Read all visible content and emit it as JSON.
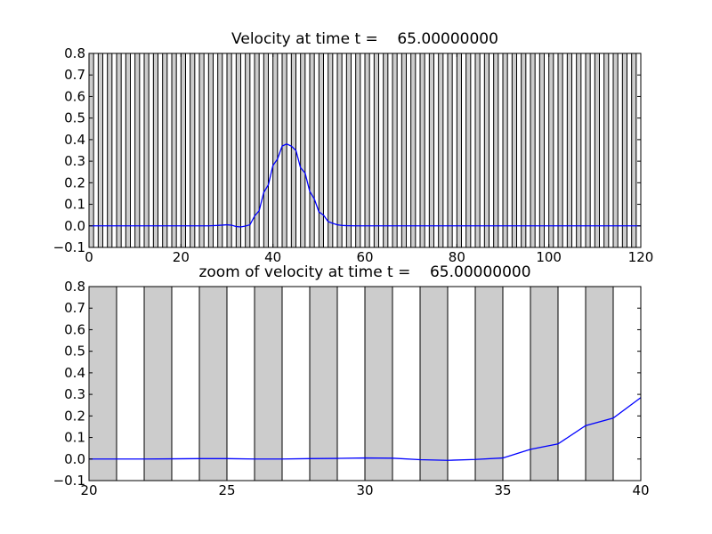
{
  "colors": {
    "background": "#ffffff",
    "band_fill": "#cccccc",
    "band_stroke": "#000000",
    "line": "#0000ff",
    "axes": "#000000"
  },
  "chart_data": [
    {
      "type": "line",
      "title": "Velocity at time t =    65.00000000",
      "xlabel": "",
      "ylabel": "",
      "xlim": [
        0,
        120
      ],
      "ylim": [
        -0.1,
        0.8
      ],
      "xticks": [
        0,
        20,
        40,
        60,
        80,
        100,
        120
      ],
      "yticks": [
        -0.1,
        0.0,
        0.1,
        0.2,
        0.3,
        0.4,
        0.5,
        0.6,
        0.7,
        0.8
      ],
      "ytick_labels": [
        "−0.1",
        "0.0",
        "0.1",
        "0.2",
        "0.3",
        "0.4",
        "0.5",
        "0.6",
        "0.7",
        "0.8"
      ],
      "shaded_bands": {
        "start": 0,
        "end": 120,
        "width": 1,
        "period": 2
      },
      "grid": false,
      "series": [
        {
          "x": [
            0,
            10,
            20,
            26,
            28,
            30,
            31,
            32,
            33,
            34,
            35,
            36,
            37,
            38,
            39,
            40,
            41,
            42,
            43,
            44,
            45,
            46,
            47,
            48,
            49,
            50,
            51,
            52,
            53,
            54,
            55,
            56,
            58,
            60,
            80,
            100,
            120
          ],
          "y": [
            0,
            0,
            0,
            0,
            0.002,
            0.005,
            0.003,
            -0.003,
            -0.005,
            -0.001,
            0.005,
            0.045,
            0.07,
            0.155,
            0.19,
            0.28,
            0.31,
            0.37,
            0.38,
            0.37,
            0.35,
            0.27,
            0.245,
            0.16,
            0.125,
            0.065,
            0.05,
            0.02,
            0.012,
            0.005,
            0.002,
            0.001,
            0,
            0,
            0,
            0,
            0
          ]
        }
      ]
    },
    {
      "type": "line",
      "title": "zoom of velocity at time t =    65.00000000",
      "xlabel": "",
      "ylabel": "",
      "xlim": [
        20,
        40
      ],
      "ylim": [
        -0.1,
        0.8
      ],
      "xticks": [
        20,
        25,
        30,
        35,
        40
      ],
      "yticks": [
        -0.1,
        0.0,
        0.1,
        0.2,
        0.3,
        0.4,
        0.5,
        0.6,
        0.7,
        0.8
      ],
      "ytick_labels": [
        "−0.1",
        "0.0",
        "0.1",
        "0.2",
        "0.3",
        "0.4",
        "0.5",
        "0.6",
        "0.7",
        "0.8"
      ],
      "shaded_bands": {
        "start": 20,
        "end": 40,
        "width": 1,
        "period": 2
      },
      "grid": false,
      "series": [
        {
          "x": [
            20,
            21,
            22,
            23,
            24,
            25,
            26,
            27,
            28,
            29,
            30,
            31,
            32,
            33,
            34,
            35,
            35.5,
            36,
            37,
            38,
            39,
            40
          ],
          "y": [
            0,
            0,
            0,
            0.001,
            0.002,
            0.002,
            0,
            0,
            0.002,
            0.003,
            0.005,
            0.004,
            -0.003,
            -0.006,
            -0.002,
            0.005,
            0.025,
            0.045,
            0.07,
            0.155,
            0.19,
            0.285
          ]
        }
      ]
    }
  ]
}
